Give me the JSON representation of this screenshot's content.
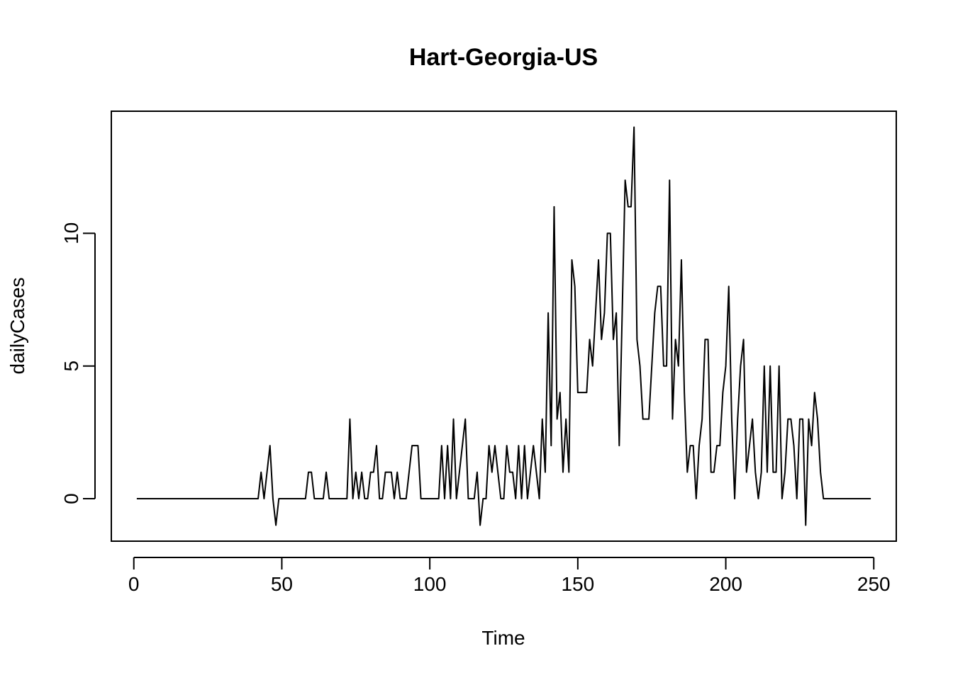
{
  "chart_data": {
    "type": "line",
    "title": "Hart-Georgia-US",
    "xlabel": "Time",
    "ylabel": "dailyCases",
    "xlim": [
      -7.6,
      257.6
    ],
    "ylim": [
      -1.6,
      14.6
    ],
    "xticks": [
      0,
      50,
      100,
      150,
      200,
      250
    ],
    "yticks": [
      0,
      5,
      10
    ],
    "grid": false,
    "line_color": "#000000",
    "series": [
      {
        "x_start": 1,
        "values": [
          0,
          0,
          0,
          0,
          0,
          0,
          0,
          0,
          0,
          0,
          0,
          0,
          0,
          0,
          0,
          0,
          0,
          0,
          0,
          0,
          0,
          0,
          0,
          0,
          0,
          0,
          0,
          0,
          0,
          0,
          0,
          0,
          0,
          0,
          0,
          0,
          0,
          0,
          0,
          0,
          0,
          0,
          1,
          0,
          1,
          2,
          0,
          -1,
          0,
          0,
          0,
          0,
          0,
          0,
          0,
          0,
          0,
          0,
          1,
          1,
          0,
          0,
          0,
          0,
          1,
          0,
          0,
          0,
          0,
          0,
          0,
          0,
          3,
          0,
          1,
          0,
          1,
          0,
          0,
          1,
          1,
          2,
          0,
          0,
          1,
          1,
          1,
          0,
          1,
          0,
          0,
          0,
          1,
          2,
          2,
          2,
          0,
          0,
          0,
          0,
          0,
          0,
          0,
          2,
          0,
          2,
          0,
          3,
          0,
          1,
          2,
          3,
          0,
          0,
          0,
          1,
          -1,
          0,
          0,
          2,
          1,
          2,
          1,
          0,
          0,
          2,
          1,
          1,
          0,
          2,
          0,
          2,
          0,
          1,
          2,
          1,
          0,
          3,
          1,
          7,
          2,
          11,
          3,
          4,
          1,
          3,
          1,
          9,
          8,
          4,
          4,
          4,
          4,
          6,
          5,
          7,
          9,
          6,
          7,
          10,
          10,
          6,
          7,
          2,
          7,
          12,
          11,
          11,
          14,
          6,
          5,
          3,
          3,
          3,
          5,
          7,
          8,
          8,
          5,
          5,
          12,
          3,
          6,
          5,
          9,
          4,
          1,
          2,
          2,
          0,
          2,
          3,
          6,
          6,
          1,
          1,
          2,
          2,
          4,
          5,
          8,
          3,
          0,
          3,
          5,
          6,
          1,
          2,
          3,
          1,
          0,
          1,
          5,
          1,
          5,
          1,
          1,
          5,
          0,
          1,
          3,
          3,
          2,
          0,
          3,
          3,
          -1,
          3,
          2,
          4,
          3,
          1,
          0,
          0,
          0,
          0,
          0,
          0,
          0,
          0,
          0,
          0,
          0,
          0,
          0,
          0,
          0,
          0,
          0
        ]
      }
    ]
  }
}
